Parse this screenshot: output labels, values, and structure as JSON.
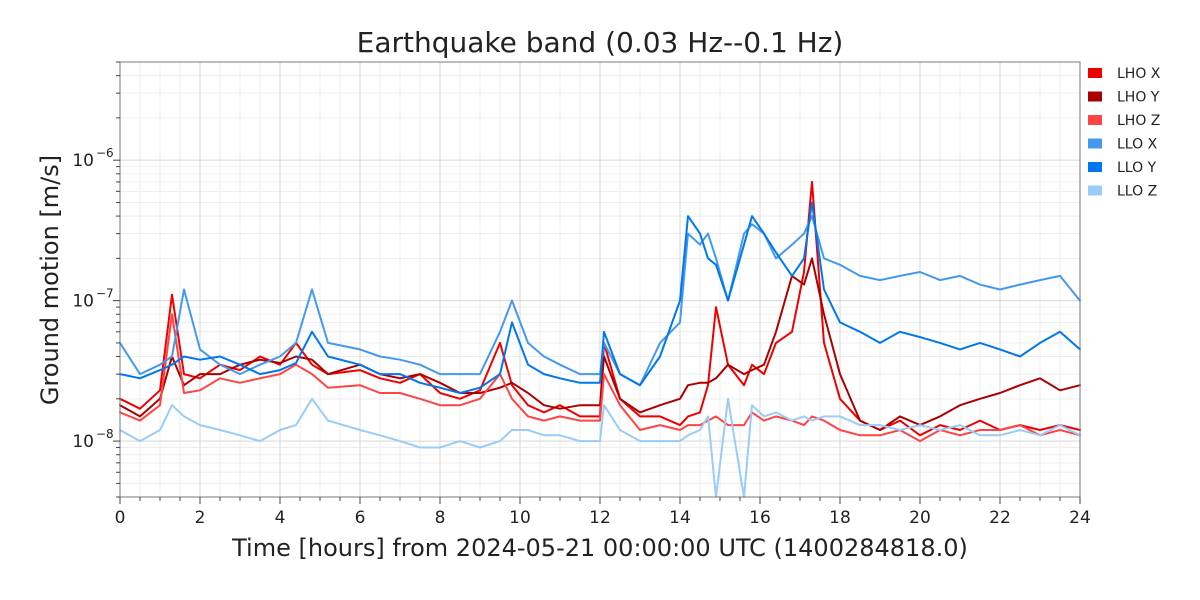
{
  "chart_data": {
    "type": "line",
    "title": "Earthquake band (0.03 Hz--0.1 Hz)",
    "xlabel": "Time [hours] from 2024-05-21 00:00:00 UTC (1400284818.0)",
    "ylabel": "Ground motion [m/s]",
    "xlim": [
      0,
      24
    ],
    "ylim": [
      4e-09,
      5e-06
    ],
    "yscale": "log",
    "grid": true,
    "legend_position": "right",
    "x_ticks": [
      "0",
      "2",
      "4",
      "6",
      "8",
      "10",
      "12",
      "14",
      "16",
      "18",
      "20",
      "22",
      "24"
    ],
    "y_ticks": [
      {
        "value": 1e-08,
        "base": "10",
        "exp": "−8"
      },
      {
        "value": 1e-07,
        "base": "10",
        "exp": "−7"
      },
      {
        "value": 1e-06,
        "base": "10",
        "exp": "−6"
      }
    ],
    "x": [
      0,
      0.5,
      1,
      1.3,
      1.6,
      2,
      2.5,
      3,
      3.5,
      4,
      4.4,
      4.8,
      5.2,
      6,
      6.5,
      7,
      7.5,
      8,
      8.5,
      9,
      9.5,
      9.8,
      10.2,
      10.6,
      11,
      11.5,
      12,
      12.1,
      12.5,
      13,
      13.5,
      14,
      14.2,
      14.5,
      14.7,
      14.9,
      15.2,
      15.6,
      15.8,
      16.1,
      16.4,
      16.8,
      17.1,
      17.3,
      17.6,
      18,
      18.5,
      19,
      19.5,
      20,
      20.5,
      21,
      21.5,
      22,
      22.5,
      23,
      23.5,
      24
    ],
    "series": [
      {
        "name": "LHO X",
        "color": "#ee0000",
        "values": [
          2e-08,
          1.7e-08,
          2.3e-08,
          1.1e-07,
          3e-08,
          2.8e-08,
          3.5e-08,
          3.2e-08,
          4e-08,
          3.5e-08,
          5e-08,
          3.5e-08,
          3e-08,
          3.2e-08,
          2.8e-08,
          2.6e-08,
          3e-08,
          2.2e-08,
          2e-08,
          2.3e-08,
          5e-08,
          2.5e-08,
          1.8e-08,
          1.6e-08,
          1.8e-08,
          1.5e-08,
          1.5e-08,
          5e-08,
          2e-08,
          1.5e-08,
          1.5e-08,
          1.3e-08,
          1.5e-08,
          1.6e-08,
          2.5e-08,
          9e-08,
          3.5e-08,
          2.5e-08,
          3.5e-08,
          3e-08,
          5e-08,
          6e-08,
          1.6e-07,
          7e-07,
          5e-08,
          2e-08,
          1.4e-08,
          1.2e-08,
          1.4e-08,
          1.1e-08,
          1.3e-08,
          1.2e-08,
          1.4e-08,
          1.2e-08,
          1.3e-08,
          1.2e-08,
          1.3e-08,
          1.2e-08
        ]
      },
      {
        "name": "LHO Y",
        "color": "#aa0000",
        "values": [
          1.8e-08,
          1.5e-08,
          2e-08,
          4e-08,
          2.5e-08,
          3e-08,
          3e-08,
          3.5e-08,
          3.8e-08,
          3.6e-08,
          4e-08,
          3.8e-08,
          3e-08,
          3.5e-08,
          3e-08,
          2.8e-08,
          3e-08,
          2.6e-08,
          2.2e-08,
          2.2e-08,
          2.4e-08,
          2.6e-08,
          2.2e-08,
          1.8e-08,
          1.7e-08,
          1.8e-08,
          1.8e-08,
          4e-08,
          2e-08,
          1.6e-08,
          1.8e-08,
          2e-08,
          2.5e-08,
          2.6e-08,
          2.6e-08,
          2.8e-08,
          3.5e-08,
          3e-08,
          3.2e-08,
          3.5e-08,
          6e-08,
          1.5e-07,
          1.3e-07,
          2e-07,
          8e-08,
          3e-08,
          1.4e-08,
          1.2e-08,
          1.5e-08,
          1.3e-08,
          1.5e-08,
          1.8e-08,
          2e-08,
          2.2e-08,
          2.5e-08,
          2.8e-08,
          2.3e-08,
          2.5e-08
        ]
      },
      {
        "name": "LHO Z",
        "color": "#ff4444",
        "values": [
          1.6e-08,
          1.4e-08,
          1.8e-08,
          8e-08,
          2.2e-08,
          2.3e-08,
          2.8e-08,
          2.6e-08,
          2.8e-08,
          3e-08,
          3.5e-08,
          3e-08,
          2.4e-08,
          2.5e-08,
          2.2e-08,
          2.2e-08,
          2e-08,
          1.8e-08,
          1.8e-08,
          2e-08,
          3e-08,
          2e-08,
          1.5e-08,
          1.4e-08,
          1.5e-08,
          1.4e-08,
          1.4e-08,
          3e-08,
          1.8e-08,
          1.2e-08,
          1.3e-08,
          1.2e-08,
          1.3e-08,
          1.3e-08,
          1.4e-08,
          1.5e-08,
          1.3e-08,
          1.3e-08,
          1.6e-08,
          1.4e-08,
          1.5e-08,
          1.4e-08,
          1.3e-08,
          1.5e-08,
          1.4e-08,
          1.2e-08,
          1.1e-08,
          1.1e-08,
          1.2e-08,
          1e-08,
          1.2e-08,
          1.1e-08,
          1.2e-08,
          1.2e-08,
          1.3e-08,
          1.1e-08,
          1.2e-08,
          1.1e-08
        ]
      },
      {
        "name": "LLO X",
        "color": "#4499ee",
        "values": [
          5e-08,
          3e-08,
          3.5e-08,
          4e-08,
          1.2e-07,
          4.5e-08,
          3.5e-08,
          3e-08,
          3.5e-08,
          4e-08,
          5e-08,
          1.2e-07,
          5e-08,
          4.5e-08,
          4e-08,
          3.8e-08,
          3.5e-08,
          3e-08,
          3e-08,
          3e-08,
          6e-08,
          1e-07,
          5e-08,
          4e-08,
          3.5e-08,
          3e-08,
          3e-08,
          5e-08,
          3e-08,
          2.5e-08,
          5e-08,
          7e-08,
          3e-07,
          2.5e-07,
          3e-07,
          2e-07,
          1e-07,
          3e-07,
          3.5e-07,
          3e-07,
          2e-07,
          2.5e-07,
          3e-07,
          4e-07,
          2e-07,
          1.8e-07,
          1.5e-07,
          1.4e-07,
          1.5e-07,
          1.6e-07,
          1.4e-07,
          1.5e-07,
          1.3e-07,
          1.2e-07,
          1.3e-07,
          1.4e-07,
          1.5e-07,
          1e-07
        ]
      },
      {
        "name": "LLO Y",
        "color": "#0077ee",
        "values": [
          3e-08,
          2.8e-08,
          3.2e-08,
          3.5e-08,
          4e-08,
          3.8e-08,
          4e-08,
          3.5e-08,
          3e-08,
          3.2e-08,
          3.6e-08,
          6e-08,
          4e-08,
          3.5e-08,
          3e-08,
          3e-08,
          2.6e-08,
          2.4e-08,
          2.2e-08,
          2.4e-08,
          3e-08,
          7e-08,
          3.5e-08,
          3e-08,
          2.8e-08,
          2.6e-08,
          2.6e-08,
          6e-08,
          3e-08,
          2.5e-08,
          4e-08,
          1e-07,
          4e-07,
          3e-07,
          2e-07,
          1.8e-07,
          1e-07,
          2.5e-07,
          4e-07,
          3e-07,
          2.2e-07,
          1.5e-07,
          2e-07,
          5e-07,
          1.2e-07,
          7e-08,
          6e-08,
          5e-08,
          6e-08,
          5.5e-08,
          5e-08,
          4.5e-08,
          5e-08,
          4.5e-08,
          4e-08,
          5e-08,
          6e-08,
          4.5e-08
        ]
      },
      {
        "name": "LLO Z",
        "color": "#99ccf7",
        "values": [
          1.2e-08,
          1e-08,
          1.2e-08,
          1.8e-08,
          1.5e-08,
          1.3e-08,
          1.2e-08,
          1.1e-08,
          1e-08,
          1.2e-08,
          1.3e-08,
          2e-08,
          1.4e-08,
          1.2e-08,
          1.1e-08,
          1e-08,
          9e-09,
          9e-09,
          1e-08,
          9e-09,
          1e-08,
          1.2e-08,
          1.2e-08,
          1.1e-08,
          1.1e-08,
          1e-08,
          1e-08,
          1.8e-08,
          1.2e-08,
          1e-08,
          1e-08,
          1e-08,
          1.1e-08,
          1.2e-08,
          1.5e-08,
          4e-09,
          2e-08,
          4e-09,
          1.8e-08,
          1.5e-08,
          1.6e-08,
          1.4e-08,
          1.5e-08,
          1.4e-08,
          1.5e-08,
          1.5e-08,
          1.3e-08,
          1.3e-08,
          1.2e-08,
          1.3e-08,
          1.2e-08,
          1.3e-08,
          1.1e-08,
          1.1e-08,
          1.2e-08,
          1.1e-08,
          1.3e-08,
          1.1e-08
        ]
      }
    ]
  }
}
